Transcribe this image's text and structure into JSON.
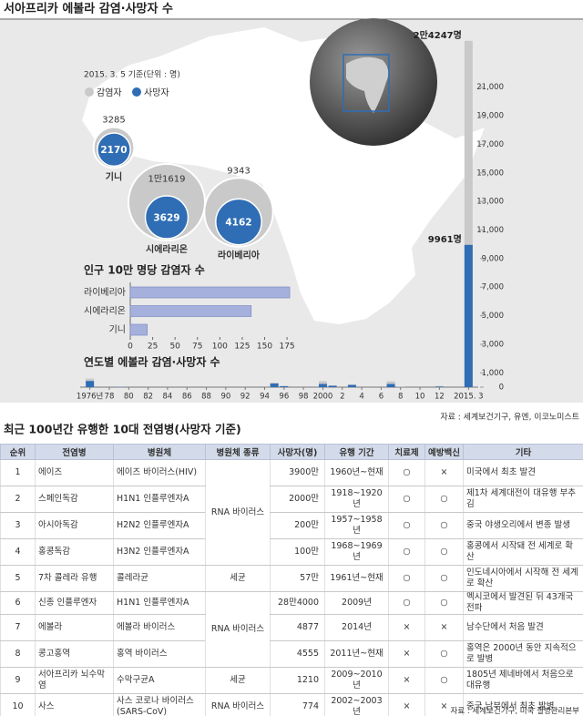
{
  "title": "서아프리카 에볼라 감염·사망자 수",
  "source": "자료 : 세계보건기구, 유엔, 이코노미스트",
  "chart_data": [
    {
      "type": "bubble",
      "subtitle": "2015. 3. 5 기준(단위 : 명)",
      "categories": [
        "기니",
        "시에라리온",
        "라이베리아"
      ],
      "series": [
        {
          "name": "감염자",
          "color": "#c9c9c9",
          "values": [
            3285,
            11619,
            9343
          ],
          "value_labels": [
            "3285",
            "1만1619",
            "9343"
          ]
        },
        {
          "name": "사망자",
          "color": "#2f6db5",
          "values": [
            2170,
            3629,
            4162
          ]
        }
      ]
    },
    {
      "type": "hbar",
      "title": "인구 10만 명당 감염자 수",
      "categories": [
        "라이베리아",
        "시에라리온",
        "기니"
      ],
      "values": [
        178,
        135,
        19
      ],
      "color": "#a6b0dc",
      "xlim": [
        0,
        180
      ],
      "xticks": [
        0,
        25,
        50,
        75,
        100,
        125,
        150,
        175
      ]
    },
    {
      "type": "bar",
      "title": "연도별 에볼라 감염·사망자 수",
      "x": [
        1976,
        1979,
        1995,
        1996,
        2000,
        2001,
        2003,
        2007,
        2008,
        2012,
        2015
      ],
      "series": [
        {
          "color": "#c9c9c9",
          "values": [
            602,
            34,
            315,
            91,
            425,
            122,
            178,
            413,
            32,
            88,
            24247
          ],
          "value_labels": [
            null,
            null,
            null,
            null,
            null,
            null,
            null,
            null,
            null,
            null,
            "2만4247명"
          ]
        },
        {
          "color": "#2f6db5",
          "values": [
            431,
            22,
            254,
            66,
            224,
            96,
            157,
            224,
            15,
            40,
            9961
          ],
          "value_labels": [
            null,
            null,
            null,
            null,
            null,
            null,
            null,
            null,
            null,
            null,
            "9961명"
          ]
        }
      ],
      "xlim": [
        1975,
        2016
      ],
      "xticks": [
        {
          "value": 1976,
          "label": "1976년"
        },
        78,
        80,
        82,
        84,
        86,
        88,
        90,
        92,
        94,
        96,
        98,
        2000,
        2,
        4,
        6,
        8,
        10,
        12,
        {
          "value": 2015,
          "label": "2015. 3"
        }
      ],
      "ylim": [
        0,
        25000
      ],
      "yticks": [
        0,
        {
          "value": 1000,
          "label": "1,000"
        },
        {
          "value": 3000,
          "label": "3,000"
        },
        {
          "value": 5000,
          "label": "5,000"
        },
        {
          "value": 7000,
          "label": "7,000"
        },
        {
          "value": 9000,
          "label": "9,000"
        },
        {
          "value": 11000,
          "label": "11,000"
        },
        {
          "value": 13000,
          "label": "13,000"
        },
        {
          "value": 15000,
          "label": "15,000"
        },
        {
          "value": 17000,
          "label": "17,000"
        },
        {
          "value": 19000,
          "label": "19,000"
        },
        {
          "value": 21000,
          "label": "21,000"
        }
      ]
    }
  ],
  "table": {
    "title": "최근 100년간 유행한 10대 전염병(사망자 기준)",
    "columns": [
      "순위",
      "전염병",
      "병원체",
      "병원체 종류",
      "사망자(명)",
      "유행 기간",
      "치료제",
      "예방백신",
      "기타"
    ],
    "rows": [
      [
        "1",
        "에이즈",
        "에이즈 바이러스(HIV)",
        "RNA 바이러스",
        "3900만",
        "1960년~현재",
        "○",
        "×",
        "미국에서 최초 발견"
      ],
      [
        "2",
        "스페인독감",
        "H1N1 인플루엔자A",
        null,
        "2000만",
        "1918~1920년",
        "○",
        "○",
        "제1차 세계대전이 대유행 부추김"
      ],
      [
        "3",
        "아시아독감",
        "H2N2 인플루엔자A",
        null,
        "200만",
        "1957~1958년",
        "○",
        "○",
        "중국 야생오리에서 변종 발생"
      ],
      [
        "4",
        "홍콩독감",
        "H3N2 인플루엔자A",
        null,
        "100만",
        "1968~1969년",
        "○",
        "○",
        "홍콩에서 시작돼 전 세계로 확산"
      ],
      [
        "5",
        "7차 콜레라 유행",
        "콜레라균",
        "세균",
        "57만",
        "1961년~현재",
        "○",
        "○",
        "인도네시아에서 시작해 전 세계로 확산"
      ],
      [
        "6",
        "신종 인플루엔자",
        "H1N1 인플루엔자A",
        "RNA 바이러스",
        "28만4000",
        "2009년",
        "○",
        "○",
        "멕시코에서 발견된 뒤 43개국 전파"
      ],
      [
        "7",
        "에볼라",
        "에볼라 바이러스",
        null,
        "4877",
        "2014년",
        "×",
        "×",
        "남수단에서 처음 발견"
      ],
      [
        "8",
        "콩고홍역",
        "홍역 바이러스",
        null,
        "4555",
        "2011년~현재",
        "×",
        "○",
        "홍역은 2000년 동안 지속적으로 발병"
      ],
      [
        "9",
        "서아프리카 뇌수막염",
        "수막구균A",
        "세균",
        "1210",
        "2009~2010년",
        "×",
        "○",
        "1805년 제네바에서 처음으로 대유행"
      ],
      [
        "10",
        "사스",
        "사스 코로나 바이러스(SARS-CoV)",
        "RNA 바이러스",
        "774",
        "2002~2003년",
        "×",
        "×",
        "중국 남부에서 최초 발병"
      ]
    ],
    "source": "자료 : 세계보건기구, 미국 질병관리본부"
  }
}
